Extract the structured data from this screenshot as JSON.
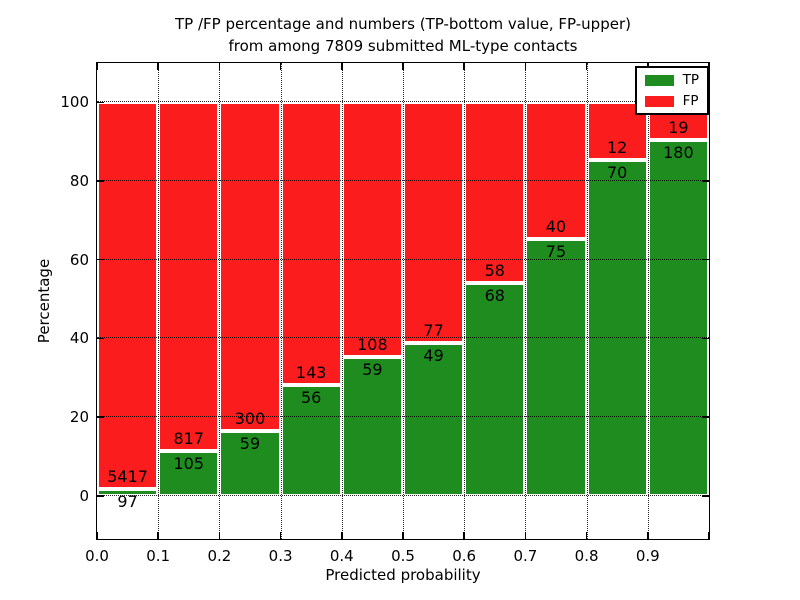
{
  "title": {
    "line1": "TP /FP percentage and numbers (TP-bottom value, FP-upper)",
    "line2": "from among 7809 submitted ML-type contacts"
  },
  "axes": {
    "xlabel": "Predicted probability",
    "ylabel": "Percentage"
  },
  "legend": {
    "position": "upper right",
    "items": [
      {
        "label": "TP",
        "color": "#1e8c1e"
      },
      {
        "label": "FP",
        "color": "#fb1d1d"
      }
    ]
  },
  "chart_data": {
    "type": "bar",
    "subtype": "stacked-percentage-histogram",
    "title": "TP /FP percentage and numbers (TP-bottom value, FP-upper) from among 7809 submitted ML-type contacts",
    "xlabel": "Predicted probability",
    "ylabel": "Percentage",
    "total_contacts": 7809,
    "bins": [
      0.0,
      0.1,
      0.2,
      0.3,
      0.4,
      0.5,
      0.6,
      0.7,
      0.8,
      0.9
    ],
    "bin_width": 0.1,
    "series": [
      {
        "name": "TP",
        "position": "bottom",
        "color": "#1e8c1e",
        "counts": [
          97,
          105,
          59,
          56,
          59,
          49,
          68,
          75,
          70,
          180
        ]
      },
      {
        "name": "FP",
        "position": "top",
        "color": "#fb1d1d",
        "counts": [
          5417,
          817,
          300,
          143,
          108,
          77,
          58,
          40,
          12,
          19
        ]
      }
    ],
    "tp_percent_of_bin": [
      1.8,
      11.4,
      16.4,
      28.1,
      35.3,
      38.9,
      54.0,
      65.2,
      85.4,
      90.5
    ],
    "bar_edge_color": "#ffffff",
    "grid": {
      "style": "dotted",
      "color": "#000000"
    },
    "xlim": [
      0.0,
      1.0
    ],
    "ylim": [
      -11,
      110
    ],
    "xticks": [
      0.0,
      0.1,
      0.2,
      0.3,
      0.4,
      0.5,
      0.6,
      0.7,
      0.8,
      0.9
    ],
    "yticks": [
      0,
      20,
      40,
      60,
      80,
      100
    ],
    "xtick_decimals": 1,
    "legend_position": "upper right"
  }
}
